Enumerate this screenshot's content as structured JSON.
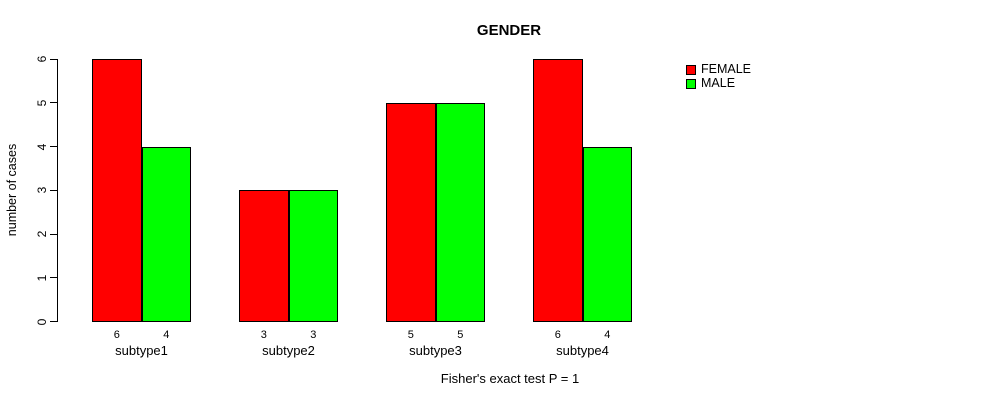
{
  "title": "GENDER",
  "caption": "Fisher's exact test P = 1",
  "y_axis": {
    "label": "number of cases",
    "tick_labels": [
      "0",
      "1",
      "2",
      "3",
      "4",
      "5",
      "6"
    ]
  },
  "legend": {
    "position": "right",
    "items": [
      {
        "label": "FEMALE",
        "color": "#ff0000"
      },
      {
        "label": "MALE",
        "color": "#00ff00"
      }
    ]
  },
  "chart_data": {
    "type": "bar",
    "title": "GENDER",
    "categories": [
      "subtype1",
      "subtype2",
      "subtype3",
      "subtype4"
    ],
    "series": [
      {
        "name": "FEMALE",
        "color": "#ff0000",
        "values": [
          6,
          3,
          5,
          6
        ]
      },
      {
        "name": "MALE",
        "color": "#00ff00",
        "values": [
          4,
          3,
          5,
          4
        ]
      }
    ],
    "bar_value_labels_shown": true,
    "xlabel": "",
    "ylabel": "number of cases",
    "ylim": [
      0,
      6
    ],
    "yticks": [
      0,
      1,
      2,
      3,
      4,
      5,
      6
    ],
    "grid": false,
    "bar_border_color": "#000000",
    "legend_position": "right",
    "annotation": "Fisher's exact test P = 1"
  }
}
